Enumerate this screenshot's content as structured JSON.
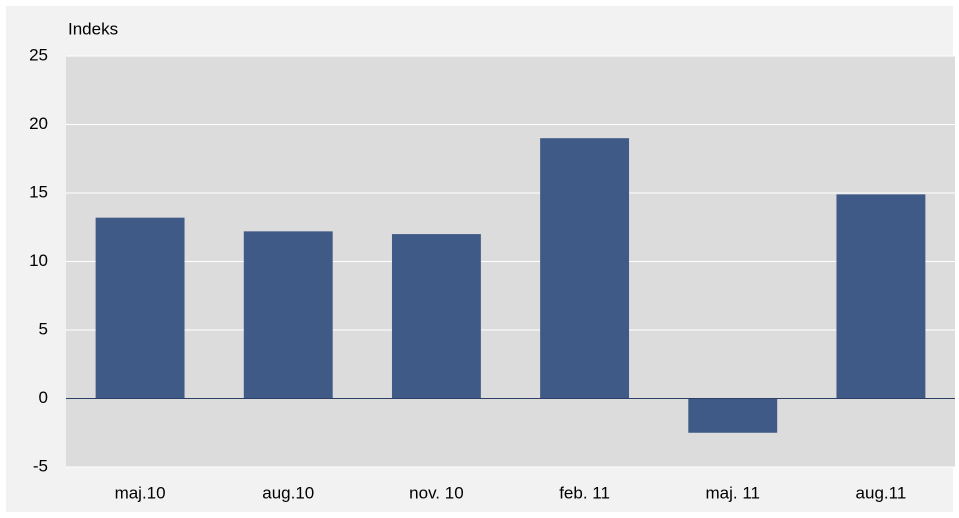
{
  "chart_data": {
    "type": "bar",
    "y_label": "Indeks",
    "categories": [
      "maj.10",
      "aug.10",
      "nov. 10",
      "feb. 11",
      "maj. 11",
      "aug.11"
    ],
    "values": [
      13.2,
      12.2,
      12.0,
      19.0,
      -2.5,
      14.9
    ],
    "color": "#3f5a87",
    "ylim": [
      -5,
      25
    ],
    "yticks": [
      -5,
      0,
      5,
      10,
      15,
      20,
      25
    ],
    "grid": true
  }
}
